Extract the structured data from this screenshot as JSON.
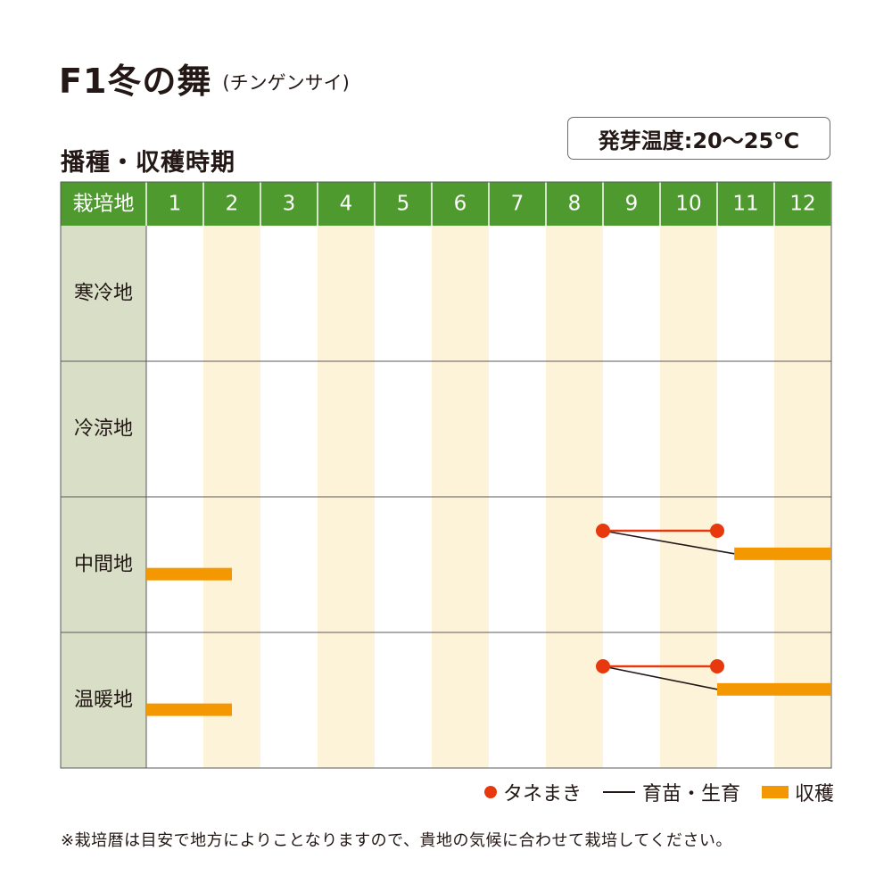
{
  "title": {
    "main": "F1冬の舞",
    "sub": "(チンゲンサイ)"
  },
  "section_title": "播種・収穫時期",
  "germination": "発芽温度:20〜25℃",
  "note": "※栽培暦は目安で地方によりことなりますので、貴地の気候に合わせて栽培してください。",
  "colors": {
    "header_green": "#4f9a2f",
    "row_label_bg": "#d8dfc6",
    "stripe": "#fdf3d9",
    "sowing": "#e8380d",
    "harvest": "#f39800",
    "growth": "#231815"
  },
  "chart_data": {
    "type": "table",
    "corner_label": "栽培地",
    "months": [
      "1",
      "2",
      "3",
      "4",
      "5",
      "6",
      "7",
      "8",
      "9",
      "10",
      "11",
      "12"
    ],
    "regions": [
      "寒冷地",
      "冷涼地",
      "中間地",
      "温暖地"
    ],
    "legend": [
      {
        "key": "sowing",
        "label": "タネまき",
        "icon": "red-dot"
      },
      {
        "key": "growth",
        "label": "育苗・生育",
        "icon": "black-line"
      },
      {
        "key": "harvest",
        "label": "収穫",
        "icon": "orange-bar"
      }
    ],
    "schedule": [
      {
        "region": "寒冷地",
        "sowing": [],
        "growth": [],
        "harvest": []
      },
      {
        "region": "冷涼地",
        "sowing": [],
        "growth": [],
        "harvest": []
      },
      {
        "region": "中間地",
        "sowing": [
          [
            9.0,
            11.0
          ]
        ],
        "growth": [
          [
            9.0,
            11.3
          ]
        ],
        "harvest": [
          [
            11.3,
            13.0
          ],
          [
            1.0,
            2.5
          ]
        ]
      },
      {
        "region": "温暖地",
        "sowing": [
          [
            9.0,
            11.0
          ]
        ],
        "growth": [
          [
            9.0,
            11.0
          ]
        ],
        "harvest": [
          [
            11.0,
            13.0
          ],
          [
            1.0,
            2.5
          ]
        ]
      }
    ]
  }
}
